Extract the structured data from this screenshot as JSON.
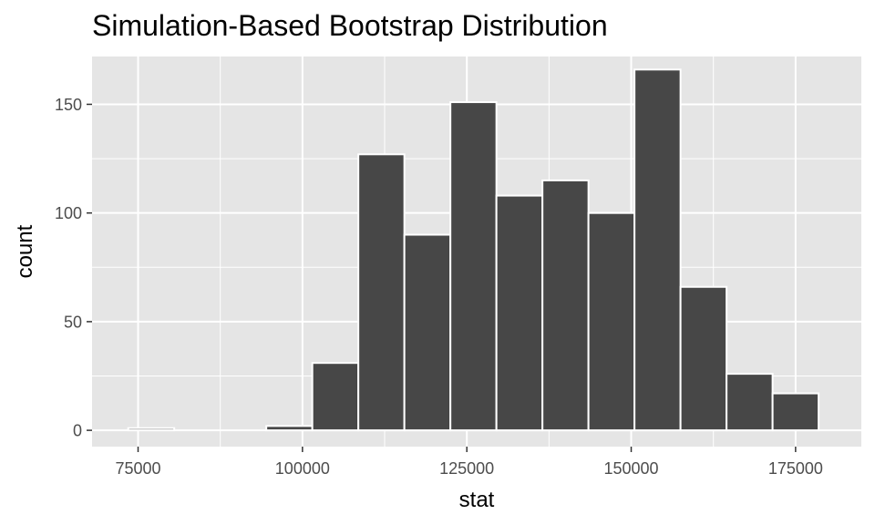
{
  "chart_data": {
    "type": "bar",
    "title": "Simulation-Based Bootstrap Distribution",
    "xlabel": "stat",
    "ylabel": "count",
    "xlim": [
      68000,
      185000
    ],
    "ylim": [
      -7.5,
      172
    ],
    "x_ticks": [
      75000,
      100000,
      125000,
      150000,
      175000
    ],
    "x_tick_labels": [
      "75000",
      "100000",
      "125000",
      "150000",
      "175000"
    ],
    "y_ticks": [
      0,
      50,
      100,
      150
    ],
    "y_tick_labels": [
      "0",
      "50",
      "100",
      "150"
    ],
    "bin_width": 7000,
    "bins": [
      {
        "x_start": 73500,
        "x_end": 80500,
        "count": 1
      },
      {
        "x_start": 80500,
        "x_end": 87500,
        "count": 0
      },
      {
        "x_start": 87500,
        "x_end": 94500,
        "count": 0
      },
      {
        "x_start": 94500,
        "x_end": 101500,
        "count": 2
      },
      {
        "x_start": 101500,
        "x_end": 108500,
        "count": 31
      },
      {
        "x_start": 108500,
        "x_end": 115500,
        "count": 127
      },
      {
        "x_start": 115500,
        "x_end": 122500,
        "count": 90
      },
      {
        "x_start": 122500,
        "x_end": 129500,
        "count": 151
      },
      {
        "x_start": 129500,
        "x_end": 136500,
        "count": 108
      },
      {
        "x_start": 136500,
        "x_end": 143500,
        "count": 115
      },
      {
        "x_start": 143500,
        "x_end": 150500,
        "count": 100
      },
      {
        "x_start": 150500,
        "x_end": 157500,
        "count": 166
      },
      {
        "x_start": 157500,
        "x_end": 164500,
        "count": 66
      },
      {
        "x_start": 164500,
        "x_end": 171500,
        "count": 26
      },
      {
        "x_start": 171500,
        "x_end": 178500,
        "count": 17
      }
    ],
    "grid": true,
    "legend": "none",
    "colors": {
      "panel_background": "#e5e5e5",
      "grid_line": "#ffffff",
      "bar_fill": "#474747",
      "bar_outline": "#ffffff",
      "tick_text": "#4d4d4d",
      "title_text": "#000000"
    }
  }
}
